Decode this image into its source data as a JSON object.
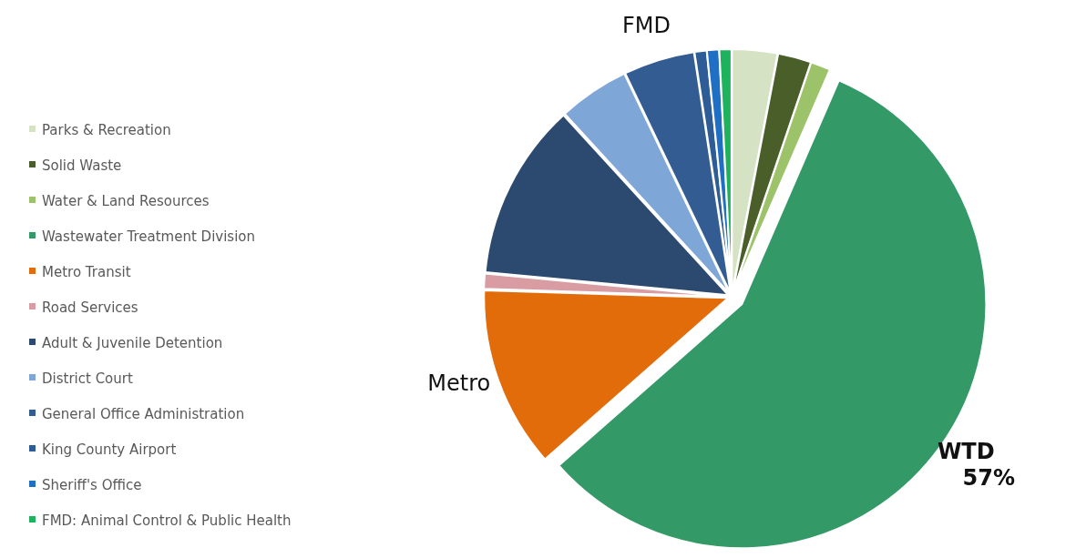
{
  "chart_data": {
    "type": "pie",
    "categories": [
      "Parks & Recreation",
      "Solid Waste",
      "Water & Land Resources",
      "Wastewater Treatment Division",
      "Metro Transit",
      "Road Services",
      "Adult & Juvenile Detention",
      "District Court",
      "General Office Administration",
      "King County Airport",
      "Sheriff's Office",
      "FMD: Animal Control & Public Health"
    ],
    "values": [
      3,
      2.2,
      1.3,
      57,
      12,
      1,
      11.7,
      4.7,
      4.7,
      0.8,
      0.8,
      0.8
    ],
    "colors": [
      "#d6e2c4",
      "#4a5e2a",
      "#9cc26a",
      "#339966",
      "#e36c0a",
      "#d99ca3",
      "#2c4a70",
      "#7ea6d6",
      "#335d92",
      "#2e5c96",
      "#1f6fc4",
      "#1db35e"
    ],
    "legend": "left",
    "annotations": [
      {
        "text": "FMD",
        "x": "General Office Administration"
      },
      {
        "text": "WTD 57%",
        "x": "Wastewater Treatment Division"
      },
      {
        "text": "Metro",
        "x": "Metro Transit"
      }
    ]
  }
}
